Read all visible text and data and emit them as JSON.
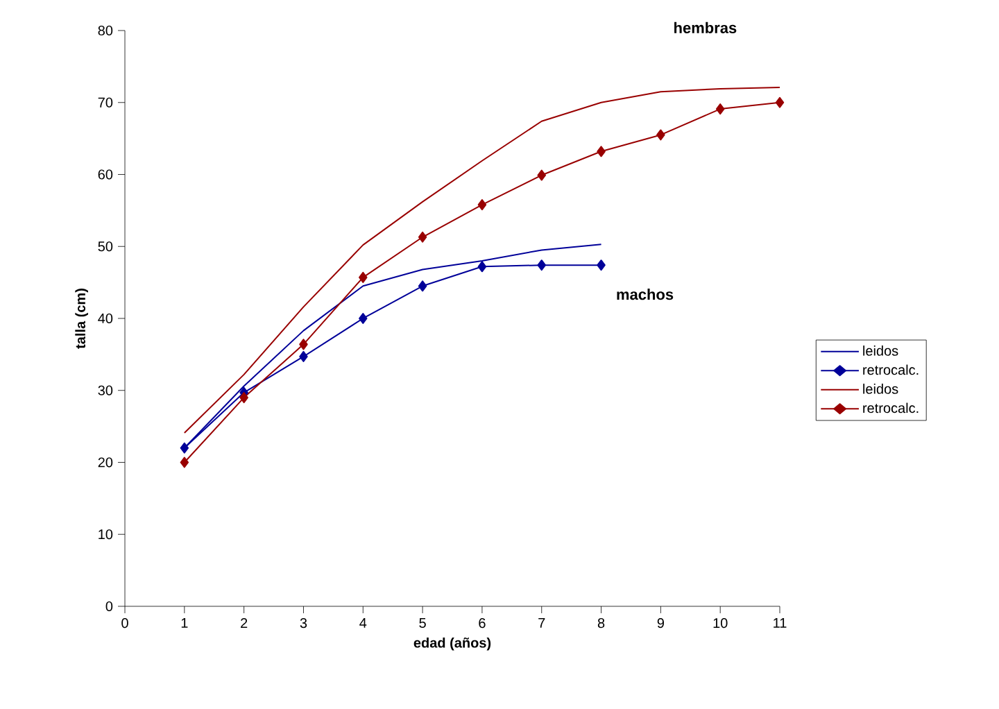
{
  "chart_data": {
    "type": "line",
    "xlabel": "edad (años)",
    "ylabel": "talla (cm)",
    "xlim": [
      0,
      11
    ],
    "xticks": [
      0,
      1,
      2,
      3,
      4,
      5,
      6,
      7,
      8,
      9,
      10,
      11
    ],
    "ylim": [
      0,
      80
    ],
    "yticks": [
      0,
      10,
      20,
      30,
      40,
      50,
      60,
      70,
      80
    ],
    "grid": false,
    "legend": "right",
    "series": [
      {
        "name": "leidos",
        "color": "#000099",
        "marker": "none",
        "x": [
          1,
          2,
          3,
          4,
          5,
          6,
          7,
          8
        ],
        "values": [
          22.0,
          30.6,
          38.3,
          44.5,
          46.8,
          48.0,
          49.5,
          50.3
        ]
      },
      {
        "name": "retrocalc.",
        "color": "#000099",
        "marker": "diamond",
        "x": [
          1,
          2,
          3,
          4,
          5,
          6,
          7,
          8
        ],
        "values": [
          22.0,
          29.7,
          34.7,
          40.0,
          44.5,
          47.2,
          47.4,
          47.4
        ]
      },
      {
        "name": "leidos",
        "color": "#990000",
        "marker": "none",
        "x": [
          1,
          2,
          3,
          4,
          5,
          6,
          7,
          8,
          9,
          10,
          11
        ],
        "values": [
          24.1,
          32.2,
          41.6,
          50.2,
          56.2,
          61.9,
          67.4,
          70.0,
          71.5,
          71.9,
          72.1
        ]
      },
      {
        "name": "retrocalc.",
        "color": "#990000",
        "marker": "diamond",
        "x": [
          1,
          2,
          3,
          4,
          5,
          6,
          7,
          8,
          9,
          10,
          11
        ],
        "values": [
          20.0,
          29.0,
          36.4,
          45.7,
          51.3,
          55.8,
          59.9,
          63.2,
          65.5,
          69.1,
          70.0
        ]
      }
    ],
    "annotations": [
      "hembras",
      "machos"
    ]
  }
}
